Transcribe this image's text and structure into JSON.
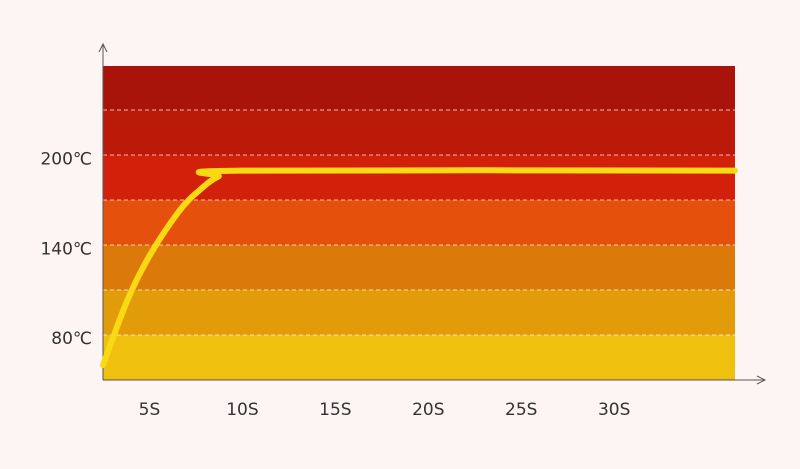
{
  "chart_data": {
    "type": "line",
    "x": [
      2.5,
      3.8,
      5,
      6.6,
      7.7,
      8.7,
      10,
      36.5
    ],
    "values": [
      60,
      103,
      133,
      163,
      177,
      186,
      190,
      190
    ],
    "color": "#f8d914",
    "xlim": [
      2.5,
      36.5
    ],
    "xticks": [
      {
        "value": 5,
        "label": "5S"
      },
      {
        "value": 10,
        "label": "10S"
      },
      {
        "value": 15,
        "label": "15S"
      },
      {
        "value": 20,
        "label": "20S"
      },
      {
        "value": 25,
        "label": "25S"
      },
      {
        "value": 30,
        "label": "30S"
      }
    ],
    "ylim": [
      50,
      260
    ],
    "yticks": [
      {
        "value": 80,
        "label": "80℃"
      },
      {
        "value": 140,
        "label": "140℃"
      },
      {
        "value": 200,
        "label": "200℃"
      }
    ]
  }
}
